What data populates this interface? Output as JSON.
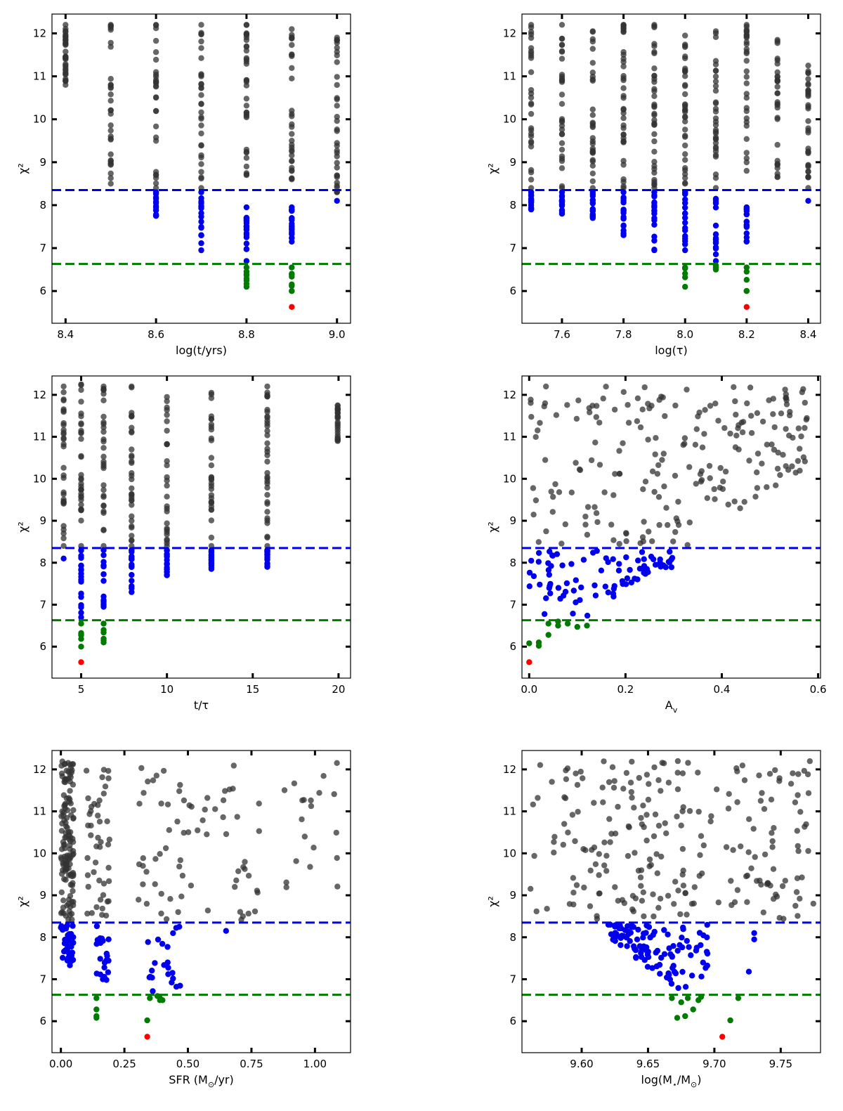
{
  "chart_data": [
    {
      "type": "scatter",
      "xlabel": "log(t/yrs)",
      "ylabel": "χ²",
      "xlim": [
        8.37,
        9.03
      ],
      "ylim": [
        5.25,
        12.45
      ],
      "xticks": [
        8.4,
        8.6,
        8.8,
        9.0
      ],
      "xtick_labels": [
        "8.4",
        "8.6",
        "8.8",
        "9.0"
      ],
      "yticks": [
        6,
        7,
        8,
        9,
        10,
        11,
        12
      ],
      "ytick_labels": [
        "6",
        "7",
        "8",
        "9",
        "10",
        "11",
        "12"
      ],
      "hlines": [
        {
          "y": 8.35,
          "color": "#0000ee",
          "style": "dashed"
        },
        {
          "y": 6.63,
          "color": "#007a00",
          "style": "dashed"
        }
      ],
      "columns": [
        {
          "x": 8.4,
          "grey": [
            10.8,
            12.2
          ],
          "blue": [],
          "green": []
        },
        {
          "x": 8.5,
          "grey": [
            8.5,
            12.2
          ],
          "blue": [],
          "green": []
        },
        {
          "x": 8.6,
          "grey": [
            8.4,
            12.2
          ],
          "blue": [
            7.75,
            8.3
          ],
          "green": []
        },
        {
          "x": 8.7,
          "grey": [
            8.4,
            12.2
          ],
          "blue": [
            6.95,
            8.3
          ],
          "green": []
        },
        {
          "x": 8.8,
          "grey": [
            8.7,
            12.2
          ],
          "blue": [
            6.7,
            7.95
          ],
          "green": [
            6.1,
            6.55
          ]
        },
        {
          "x": 8.9,
          "grey": [
            8.6,
            12.1
          ],
          "blue": [
            7.15,
            7.95
          ],
          "green": [
            6.0,
            6.55
          ]
        },
        {
          "x": 9.0,
          "grey": [
            8.3,
            11.9
          ],
          "blue": [
            8.1,
            8.1
          ],
          "green": []
        }
      ],
      "best_fit": {
        "x": 8.9,
        "y": 5.63,
        "color": "#ff0000"
      },
      "colors": {
        "grey": "#333333",
        "blue": "#0000ee",
        "green": "#007a00",
        "red": "#ff0000"
      }
    },
    {
      "type": "scatter",
      "xlabel": "log(τ)",
      "ylabel": "χ²",
      "xlim": [
        7.47,
        8.44
      ],
      "ylim": [
        5.25,
        12.45
      ],
      "xticks": [
        7.6,
        7.8,
        8.0,
        8.2,
        8.4
      ],
      "xtick_labels": [
        "7.6",
        "7.8",
        "8.0",
        "8.2",
        "8.4"
      ],
      "yticks": [
        6,
        7,
        8,
        9,
        10,
        11,
        12
      ],
      "ytick_labels": [
        "6",
        "7",
        "8",
        "9",
        "10",
        "11",
        "12"
      ],
      "hlines": [
        {
          "y": 8.35,
          "color": "#0000ee",
          "style": "dashed"
        },
        {
          "y": 6.63,
          "color": "#007a00",
          "style": "dashed"
        }
      ],
      "columns": [
        {
          "x": 7.5,
          "grey": [
            8.4,
            12.2
          ],
          "blue": [
            7.9,
            8.3
          ],
          "green": []
        },
        {
          "x": 7.6,
          "grey": [
            8.4,
            12.2
          ],
          "blue": [
            7.8,
            8.3
          ],
          "green": []
        },
        {
          "x": 7.7,
          "grey": [
            8.4,
            12.05
          ],
          "blue": [
            7.7,
            8.3
          ],
          "green": []
        },
        {
          "x": 7.8,
          "grey": [
            8.4,
            12.2
          ],
          "blue": [
            7.3,
            8.3
          ],
          "green": []
        },
        {
          "x": 7.9,
          "grey": [
            8.4,
            12.2
          ],
          "blue": [
            6.95,
            8.3
          ],
          "green": []
        },
        {
          "x": 8.0,
          "grey": [
            8.5,
            11.95
          ],
          "blue": [
            6.95,
            8.3
          ],
          "green": [
            6.1,
            6.55
          ]
        },
        {
          "x": 8.1,
          "grey": [
            8.4,
            12.05
          ],
          "blue": [
            6.7,
            8.15
          ],
          "green": [
            6.5,
            6.6
          ]
        },
        {
          "x": 8.2,
          "grey": [
            8.8,
            12.2
          ],
          "blue": [
            7.15,
            7.95
          ],
          "green": [
            6.0,
            6.55
          ]
        },
        {
          "x": 8.3,
          "grey": [
            8.65,
            11.85
          ],
          "blue": [],
          "green": []
        },
        {
          "x": 8.4,
          "grey": [
            8.4,
            11.25
          ],
          "blue": [
            8.1,
            8.1
          ],
          "green": []
        }
      ],
      "best_fit": {
        "x": 8.2,
        "y": 5.63,
        "color": "#ff0000"
      },
      "colors": {
        "grey": "#333333",
        "blue": "#0000ee",
        "green": "#007a00",
        "red": "#ff0000"
      }
    },
    {
      "type": "scatter",
      "xlabel": "t/τ",
      "ylabel": "χ²",
      "xlim": [
        3.3,
        20.7
      ],
      "ylim": [
        5.25,
        12.45
      ],
      "xticks": [
        5,
        10,
        15,
        20
      ],
      "xtick_labels": [
        "5",
        "10",
        "15",
        "20"
      ],
      "yticks": [
        6,
        7,
        8,
        9,
        10,
        11,
        12
      ],
      "ytick_labels": [
        "6",
        "7",
        "8",
        "9",
        "10",
        "11",
        "12"
      ],
      "hlines": [
        {
          "y": 8.35,
          "color": "#0000ee",
          "style": "dashed"
        },
        {
          "y": 6.63,
          "color": "#007a00",
          "style": "dashed"
        }
      ],
      "columns": [
        {
          "x": 3.98,
          "grey": [
            8.4,
            12.2
          ],
          "blue": [
            8.1,
            8.1
          ],
          "green": []
        },
        {
          "x": 5.0,
          "grey": [
            8.4,
            12.25
          ],
          "blue": [
            6.7,
            8.3
          ],
          "green": [
            6.0,
            6.55
          ]
        },
        {
          "x": 6.31,
          "grey": [
            8.4,
            12.2
          ],
          "blue": [
            6.95,
            8.3
          ],
          "green": [
            6.1,
            6.55
          ]
        },
        {
          "x": 7.94,
          "grey": [
            8.4,
            12.2
          ],
          "blue": [
            7.3,
            8.3
          ],
          "green": []
        },
        {
          "x": 10.0,
          "grey": [
            8.4,
            11.95
          ],
          "blue": [
            7.7,
            8.3
          ],
          "green": []
        },
        {
          "x": 12.59,
          "grey": [
            8.4,
            12.05
          ],
          "blue": [
            7.85,
            8.3
          ],
          "green": []
        },
        {
          "x": 15.85,
          "grey": [
            8.4,
            12.2
          ],
          "blue": [
            7.9,
            8.3
          ],
          "green": []
        },
        {
          "x": 19.95,
          "grey": [
            10.9,
            11.75
          ],
          "blue": [],
          "green": []
        }
      ],
      "best_fit": {
        "x": 5.0,
        "y": 5.63,
        "color": "#ff0000"
      },
      "colors": {
        "grey": "#333333",
        "blue": "#0000ee",
        "green": "#007a00",
        "red": "#ff0000"
      }
    },
    {
      "type": "scatter",
      "xlabel": "A",
      "xlabel_sub": "v",
      "ylabel": "χ²",
      "xlim": [
        -0.015,
        0.605
      ],
      "ylim": [
        5.25,
        12.45
      ],
      "xticks": [
        0.0,
        0.2,
        0.4,
        0.6
      ],
      "xtick_labels": [
        "0.0",
        "0.2",
        "0.4",
        "0.6"
      ],
      "yticks": [
        6,
        7,
        8,
        9,
        10,
        11,
        12
      ],
      "ytick_labels": [
        "6",
        "7",
        "8",
        "9",
        "10",
        "11",
        "12"
      ],
      "hlines": [
        {
          "y": 8.35,
          "color": "#0000ee",
          "style": "dashed"
        },
        {
          "y": 6.63,
          "color": "#007a00",
          "style": "dashed"
        }
      ],
      "cloud": {
        "pattern": "wedge",
        "x_min": 0.0,
        "x_max": 0.58,
        "y_top": 12.2
      },
      "green_points": [
        [
          0.0,
          6.08
        ],
        [
          0.02,
          6.02
        ],
        [
          0.02,
          6.1
        ],
        [
          0.04,
          6.28
        ],
        [
          0.04,
          6.55
        ],
        [
          0.06,
          6.5
        ],
        [
          0.06,
          6.6
        ],
        [
          0.08,
          6.55
        ],
        [
          0.1,
          6.47
        ],
        [
          0.12,
          6.5
        ]
      ],
      "best_fit": {
        "x": 0.0,
        "y": 5.63,
        "color": "#ff0000"
      },
      "colors": {
        "grey": "#333333",
        "blue": "#0000ee",
        "green": "#007a00",
        "red": "#ff0000"
      }
    },
    {
      "type": "scatter",
      "xlabel": "SFR (M",
      "xlabel_sub": "⊙",
      "xlabel_tail": "/yr)",
      "ylabel": "χ²",
      "xlim": [
        -0.035,
        1.14
      ],
      "ylim": [
        5.25,
        12.45
      ],
      "xticks": [
        0.0,
        0.25,
        0.5,
        0.75,
        1.0
      ],
      "xtick_labels": [
        "0.00",
        "0.25",
        "0.50",
        "0.75",
        "1.00"
      ],
      "yticks": [
        6,
        7,
        8,
        9,
        10,
        11,
        12
      ],
      "ytick_labels": [
        "6",
        "7",
        "8",
        "9",
        "10",
        "11",
        "12"
      ],
      "hlines": [
        {
          "y": 8.35,
          "color": "#0000ee",
          "style": "dashed"
        },
        {
          "y": 6.63,
          "color": "#007a00",
          "style": "dashed"
        }
      ],
      "cloud": {
        "pattern": "sfr",
        "x_min": 0.0,
        "x_max": 1.1,
        "y_top": 12.2
      },
      "green_points": [
        [
          0.14,
          6.08
        ],
        [
          0.14,
          6.12
        ],
        [
          0.14,
          6.28
        ],
        [
          0.14,
          6.55
        ],
        [
          0.34,
          6.02
        ],
        [
          0.35,
          6.55
        ],
        [
          0.39,
          6.5
        ],
        [
          0.39,
          6.55
        ],
        [
          0.4,
          6.5
        ],
        [
          0.38,
          6.6
        ]
      ],
      "best_fit": {
        "x": 0.34,
        "y": 5.63,
        "color": "#ff0000"
      },
      "colors": {
        "grey": "#333333",
        "blue": "#0000ee",
        "green": "#007a00",
        "red": "#ff0000"
      }
    },
    {
      "type": "scatter",
      "xlabel": "log(M",
      "xlabel_sub": "⋆",
      "xlabel_mid": "/M",
      "xlabel_sub2": "⊙",
      "xlabel_tail": ")",
      "ylabel": "χ²",
      "xlim": [
        9.555,
        9.78
      ],
      "ylim": [
        5.25,
        12.45
      ],
      "xticks": [
        9.6,
        9.65,
        9.7,
        9.75
      ],
      "xtick_labels": [
        "9.60",
        "9.65",
        "9.70",
        "9.75"
      ],
      "yticks": [
        6,
        7,
        8,
        9,
        10,
        11,
        12
      ],
      "ytick_labels": [
        "6",
        "7",
        "8",
        "9",
        "10",
        "11",
        "12"
      ],
      "hlines": [
        {
          "y": 8.35,
          "color": "#0000ee",
          "style": "dashed"
        },
        {
          "y": 6.63,
          "color": "#007a00",
          "style": "dashed"
        }
      ],
      "cloud": {
        "pattern": "mass",
        "x_min": 9.56,
        "x_max": 9.775,
        "y_top": 12.2
      },
      "green_points": [
        [
          9.668,
          6.55
        ],
        [
          9.672,
          6.08
        ],
        [
          9.675,
          6.45
        ],
        [
          9.678,
          6.12
        ],
        [
          9.68,
          6.55
        ],
        [
          9.684,
          6.28
        ],
        [
          9.688,
          6.5
        ],
        [
          9.69,
          6.58
        ],
        [
          9.712,
          6.02
        ],
        [
          9.718,
          6.55
        ]
      ],
      "best_fit": {
        "x": 9.706,
        "y": 5.63,
        "color": "#ff0000"
      },
      "colors": {
        "grey": "#333333",
        "blue": "#0000ee",
        "green": "#007a00",
        "red": "#ff0000"
      }
    }
  ]
}
